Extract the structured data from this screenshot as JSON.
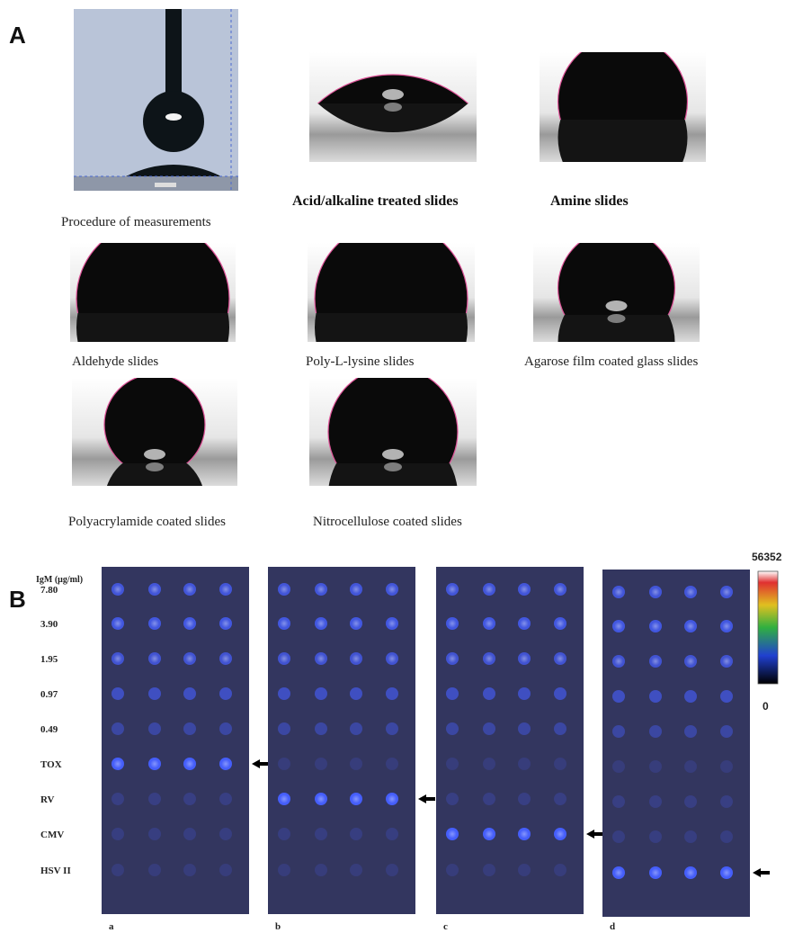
{
  "panel_a": {
    "label": "A",
    "captions": [
      "Procedure of measurements",
      "Acid/alkaline treated slides",
      "Amine slides",
      "Aldehyde slides",
      "Poly-L-lysine slides",
      "Agarose film coated glass slides",
      "Polyacrylamide coated slides",
      "Nitrocellulose coated slides"
    ]
  },
  "panel_b": {
    "label": "B",
    "axis_title": "IgM (μg/ml)",
    "row_labels": [
      "7.80",
      "3.90",
      "1.95",
      "0.97",
      "0.49",
      "TOX",
      "RV",
      "CMV",
      "HSV  II"
    ],
    "slide_labels": [
      "a",
      "b",
      "c",
      "d"
    ],
    "scale": {
      "max": "56352",
      "min": "0"
    }
  }
}
